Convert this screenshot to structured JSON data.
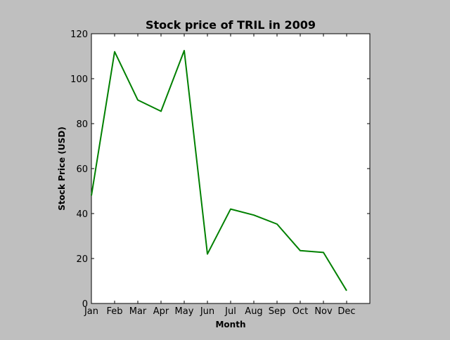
{
  "chart_data": {
    "type": "line",
    "title": "Stock price of TRIL in 2009",
    "xlabel": "Month",
    "ylabel": "Stock Price (USD)",
    "categories": [
      "Jan",
      "Feb",
      "Mar",
      "Apr",
      "May",
      "Jun",
      "Jul",
      "Aug",
      "Sep",
      "Oct",
      "Nov",
      "Dec"
    ],
    "series": [
      {
        "values": [
          48,
          112,
          90.5,
          85.5,
          112.5,
          22,
          42,
          39.3,
          35.3,
          23.5,
          22.7,
          5.7
        ],
        "color": "#008000"
      }
    ],
    "ylim": [
      0,
      120
    ],
    "yticks": [
      0,
      20,
      40,
      60,
      80,
      100,
      120
    ],
    "grid": false,
    "legend": "none"
  },
  "colors": {
    "background": "#bfbfbf",
    "plot_area": "#ffffff",
    "line": "#008000"
  }
}
